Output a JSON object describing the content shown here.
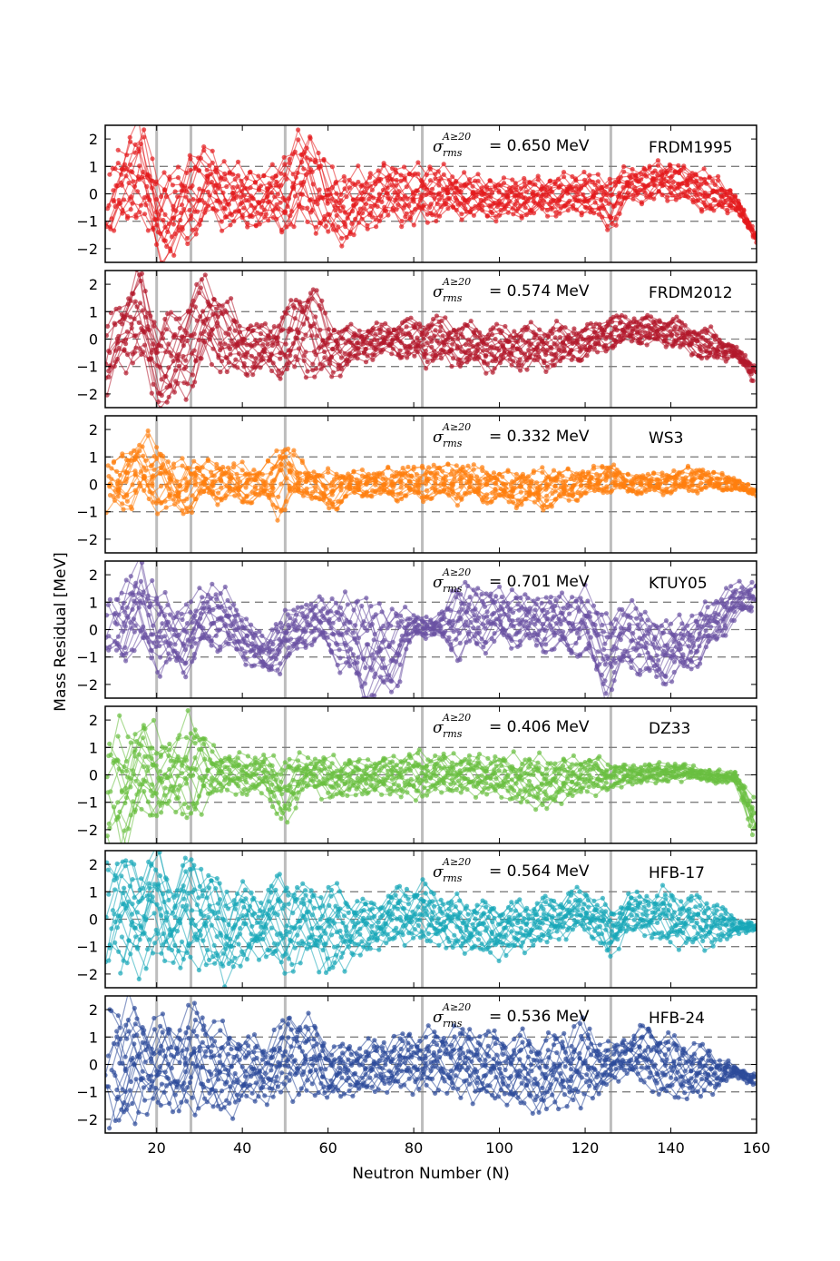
{
  "chart_data": {
    "type": "scatter",
    "xlabel": "Neutron Number (N)",
    "ylabel": "Mass Residual [MeV]",
    "xlim": [
      8,
      160
    ],
    "ylim": [
      -2.5,
      2.5
    ],
    "xticks": [
      "20",
      "40",
      "60",
      "80",
      "100",
      "120",
      "140",
      "160"
    ],
    "yticks": [
      "2",
      "1",
      "0",
      "−1",
      "−2"
    ],
    "sigma_symbol": "σ",
    "sigma_sub": "rms",
    "sigma_sup": "A≥20",
    "magic_numbers": [
      20,
      28,
      50,
      82,
      126
    ],
    "reference_lines": [
      -1,
      0,
      1
    ],
    "panels": [
      {
        "model": "FRDM1995",
        "sigma_text": "= 0.650 MeV",
        "color": "#e41a1c",
        "envelope_note": "approximate residual band per neutron number",
        "envelope": [
          [
            8,
            -1.5,
            0.8
          ],
          [
            12,
            -1.0,
            1.5
          ],
          [
            16,
            -0.5,
            2.5
          ],
          [
            20,
            -2.2,
            0.6
          ],
          [
            24,
            -2.3,
            0.5
          ],
          [
            28,
            -1.5,
            1.4
          ],
          [
            32,
            -0.8,
            1.5
          ],
          [
            36,
            -1.0,
            1.0
          ],
          [
            40,
            -1.2,
            0.8
          ],
          [
            45,
            -1.0,
            0.6
          ],
          [
            50,
            -1.2,
            1.2
          ],
          [
            55,
            -0.8,
            2.3
          ],
          [
            60,
            -1.5,
            0.8
          ],
          [
            65,
            -1.6,
            0.5
          ],
          [
            70,
            -1.0,
            0.7
          ],
          [
            75,
            -0.8,
            1.0
          ],
          [
            80,
            -1.0,
            0.8
          ],
          [
            85,
            -0.8,
            0.9
          ],
          [
            90,
            -0.7,
            0.6
          ],
          [
            100,
            -0.8,
            0.4
          ],
          [
            110,
            -0.7,
            0.5
          ],
          [
            120,
            -0.6,
            0.6
          ],
          [
            126,
            -1.2,
            0.6
          ],
          [
            130,
            -0.2,
            0.8
          ],
          [
            140,
            -0.1,
            1.1
          ],
          [
            150,
            -0.7,
            0.6
          ],
          [
            155,
            -0.5,
            0.0
          ],
          [
            160,
            -1.8,
            -1.5
          ]
        ]
      },
      {
        "model": "FRDM2012",
        "sigma_text": "= 0.574 MeV",
        "color": "#b2182b",
        "envelope_note": "approximate residual band per neutron number",
        "envelope": [
          [
            8,
            -2.2,
            0.3
          ],
          [
            12,
            -0.8,
            1.5
          ],
          [
            16,
            -0.5,
            2.2
          ],
          [
            20,
            -2.2,
            0.6
          ],
          [
            24,
            -2.3,
            0.6
          ],
          [
            28,
            -1.5,
            1.6
          ],
          [
            32,
            -0.6,
            2.0
          ],
          [
            36,
            -1.0,
            1.2
          ],
          [
            40,
            -1.2,
            0.6
          ],
          [
            45,
            -1.1,
            0.4
          ],
          [
            50,
            -1.2,
            0.8
          ],
          [
            55,
            -1.0,
            2.2
          ],
          [
            60,
            -1.4,
            0.6
          ],
          [
            65,
            -0.9,
            0.3
          ],
          [
            70,
            -0.6,
            0.4
          ],
          [
            75,
            -0.5,
            0.5
          ],
          [
            80,
            -0.7,
            0.6
          ],
          [
            85,
            -0.8,
            0.7
          ],
          [
            90,
            -0.9,
            0.5
          ],
          [
            100,
            -1.0,
            0.3
          ],
          [
            110,
            -1.0,
            0.4
          ],
          [
            120,
            -0.7,
            0.4
          ],
          [
            126,
            -0.3,
            0.8
          ],
          [
            130,
            -0.1,
            0.8
          ],
          [
            140,
            -0.2,
            0.7
          ],
          [
            150,
            -0.8,
            0.2
          ],
          [
            155,
            -0.6,
            -0.3
          ],
          [
            160,
            -1.7,
            -1.0
          ]
        ]
      },
      {
        "model": "WS3",
        "sigma_text": "= 0.332 MeV",
        "color": "#ff7f0e",
        "envelope_note": "approximate residual band per neutron number",
        "envelope": [
          [
            8,
            -1.1,
            0.8
          ],
          [
            12,
            -0.7,
            0.9
          ],
          [
            16,
            -0.5,
            1.6
          ],
          [
            20,
            -0.7,
            1.4
          ],
          [
            24,
            -1.0,
            0.6
          ],
          [
            28,
            -0.8,
            0.7
          ],
          [
            32,
            -0.5,
            0.8
          ],
          [
            36,
            -0.5,
            0.6
          ],
          [
            40,
            -0.6,
            0.6
          ],
          [
            45,
            -0.6,
            0.5
          ],
          [
            50,
            -1.0,
            1.6
          ],
          [
            55,
            -0.3,
            0.5
          ],
          [
            60,
            -1.0,
            0.4
          ],
          [
            65,
            -0.4,
            0.4
          ],
          [
            70,
            -0.4,
            0.4
          ],
          [
            80,
            -0.5,
            0.6
          ],
          [
            90,
            -0.5,
            0.7
          ],
          [
            100,
            -0.6,
            0.4
          ],
          [
            110,
            -0.8,
            0.4
          ],
          [
            120,
            -0.4,
            0.5
          ],
          [
            126,
            -0.2,
            0.7
          ],
          [
            130,
            -0.3,
            0.3
          ],
          [
            140,
            -0.3,
            0.4
          ],
          [
            145,
            -0.2,
            0.6
          ],
          [
            150,
            -0.2,
            0.4
          ],
          [
            155,
            -0.2,
            0.2
          ],
          [
            160,
            -0.4,
            -0.2
          ]
        ]
      },
      {
        "model": "KTUY05",
        "sigma_text": "= 0.701 MeV",
        "color": "#6a51a3",
        "envelope_note": "approximate residual band per neutron number",
        "envelope": [
          [
            8,
            -1.2,
            1.5
          ],
          [
            12,
            -1.0,
            1.4
          ],
          [
            16,
            -0.6,
            2.3
          ],
          [
            20,
            -1.2,
            1.3
          ],
          [
            24,
            -1.5,
            0.6
          ],
          [
            28,
            -1.3,
            0.8
          ],
          [
            32,
            -0.4,
            1.5
          ],
          [
            36,
            -0.6,
            1.2
          ],
          [
            40,
            -0.9,
            0.5
          ],
          [
            45,
            -1.6,
            -0.4
          ],
          [
            50,
            -1.3,
            0.6
          ],
          [
            55,
            -0.4,
            0.9
          ],
          [
            60,
            -0.6,
            1.0
          ],
          [
            65,
            -1.8,
            1.0
          ],
          [
            70,
            -2.4,
            0.8
          ],
          [
            75,
            -2.2,
            0.6
          ],
          [
            80,
            -0.2,
            0.5
          ],
          [
            85,
            -0.2,
            0.3
          ],
          [
            90,
            -0.8,
            1.5
          ],
          [
            100,
            -0.4,
            1.3
          ],
          [
            110,
            -0.6,
            1.1
          ],
          [
            120,
            -0.9,
            1.2
          ],
          [
            126,
            -2.4,
            0.3
          ],
          [
            130,
            -1.0,
            0.9
          ],
          [
            135,
            -1.8,
            0.4
          ],
          [
            140,
            -1.8,
            0.1
          ],
          [
            145,
            -1.3,
            0.4
          ],
          [
            150,
            -0.5,
            1.0
          ],
          [
            155,
            0.4,
            1.6
          ],
          [
            160,
            0.9,
            1.6
          ]
        ]
      },
      {
        "model": "DZ33",
        "sigma_text": "= 0.406 MeV",
        "color": "#6abf40",
        "envelope_note": "approximate residual band per neutron number",
        "envelope": [
          [
            8,
            -2.5,
            1.3
          ],
          [
            12,
            -2.5,
            1.5
          ],
          [
            16,
            -1.0,
            1.6
          ],
          [
            20,
            -1.5,
            1.4
          ],
          [
            24,
            -1.0,
            0.8
          ],
          [
            28,
            -1.6,
            2.3
          ],
          [
            32,
            -0.8,
            1.0
          ],
          [
            36,
            -0.5,
            0.7
          ],
          [
            40,
            -0.6,
            0.6
          ],
          [
            45,
            -0.5,
            0.6
          ],
          [
            50,
            -1.8,
            0.4
          ],
          [
            55,
            -0.3,
            0.6
          ],
          [
            60,
            -0.8,
            0.5
          ],
          [
            70,
            -0.6,
            0.5
          ],
          [
            80,
            -0.7,
            0.7
          ],
          [
            90,
            -0.5,
            0.6
          ],
          [
            100,
            -0.7,
            0.6
          ],
          [
            110,
            -1.1,
            0.5
          ],
          [
            120,
            -0.6,
            0.6
          ],
          [
            126,
            -0.5,
            0.4
          ],
          [
            130,
            -0.3,
            0.3
          ],
          [
            140,
            -0.2,
            0.4
          ],
          [
            145,
            -0.1,
            0.3
          ],
          [
            150,
            -0.3,
            0.1
          ],
          [
            155,
            -0.2,
            0.1
          ],
          [
            160,
            -2.5,
            -1.2
          ]
        ]
      },
      {
        "model": "HFB-17",
        "sigma_text": "= 0.564 MeV",
        "color": "#17a7b8",
        "envelope_note": "approximate residual band per neutron number",
        "envelope": [
          [
            8,
            -2.3,
            2.3
          ],
          [
            12,
            -1.5,
            2.0
          ],
          [
            16,
            -1.5,
            1.8
          ],
          [
            20,
            -1.0,
            2.3
          ],
          [
            24,
            -1.6,
            1.2
          ],
          [
            28,
            -1.3,
            2.3
          ],
          [
            32,
            -1.4,
            1.5
          ],
          [
            36,
            -2.0,
            1.0
          ],
          [
            40,
            -1.5,
            1.0
          ],
          [
            45,
            -1.1,
            0.8
          ],
          [
            50,
            -1.8,
            1.5
          ],
          [
            55,
            -1.1,
            1.0
          ],
          [
            60,
            -1.8,
            1.0
          ],
          [
            70,
            -1.0,
            0.5
          ],
          [
            80,
            -0.6,
            1.2
          ],
          [
            90,
            -1.0,
            0.6
          ],
          [
            100,
            -1.2,
            0.4
          ],
          [
            110,
            -0.8,
            0.6
          ],
          [
            120,
            -0.3,
            1.0
          ],
          [
            126,
            -1.3,
            0.2
          ],
          [
            130,
            -0.3,
            0.8
          ],
          [
            140,
            -0.8,
            0.9
          ],
          [
            145,
            -0.8,
            0.7
          ],
          [
            150,
            -0.9,
            0.6
          ],
          [
            155,
            -0.5,
            0.0
          ],
          [
            160,
            -0.4,
            -0.2
          ]
        ]
      },
      {
        "model": "HFB-24",
        "sigma_text": "= 0.536 MeV",
        "color": "#2c4a9a",
        "envelope_note": "approximate residual band per neutron number",
        "envelope": [
          [
            8,
            -2.5,
            2.2
          ],
          [
            12,
            -2.1,
            2.2
          ],
          [
            16,
            -1.5,
            1.6
          ],
          [
            20,
            -1.4,
            1.5
          ],
          [
            24,
            -1.5,
            1.1
          ],
          [
            28,
            -1.6,
            2.1
          ],
          [
            32,
            -1.3,
            1.5
          ],
          [
            36,
            -1.7,
            1.0
          ],
          [
            40,
            -1.3,
            1.0
          ],
          [
            45,
            -1.2,
            0.6
          ],
          [
            50,
            -0.9,
            1.5
          ],
          [
            55,
            -0.8,
            1.8
          ],
          [
            60,
            -1.2,
            0.6
          ],
          [
            70,
            -0.9,
            0.7
          ],
          [
            80,
            -0.7,
            1.0
          ],
          [
            90,
            -0.9,
            1.2
          ],
          [
            100,
            -1.2,
            1.0
          ],
          [
            110,
            -1.6,
            0.8
          ],
          [
            120,
            -1.2,
            1.3
          ],
          [
            126,
            -0.6,
            0.5
          ],
          [
            130,
            -0.2,
            1.0
          ],
          [
            135,
            -0.8,
            1.3
          ],
          [
            140,
            -1.1,
            0.9
          ],
          [
            145,
            -1.0,
            0.6
          ],
          [
            150,
            -0.9,
            0.4
          ],
          [
            155,
            -0.4,
            -0.1
          ],
          [
            160,
            -0.8,
            -0.4
          ]
        ]
      }
    ]
  }
}
